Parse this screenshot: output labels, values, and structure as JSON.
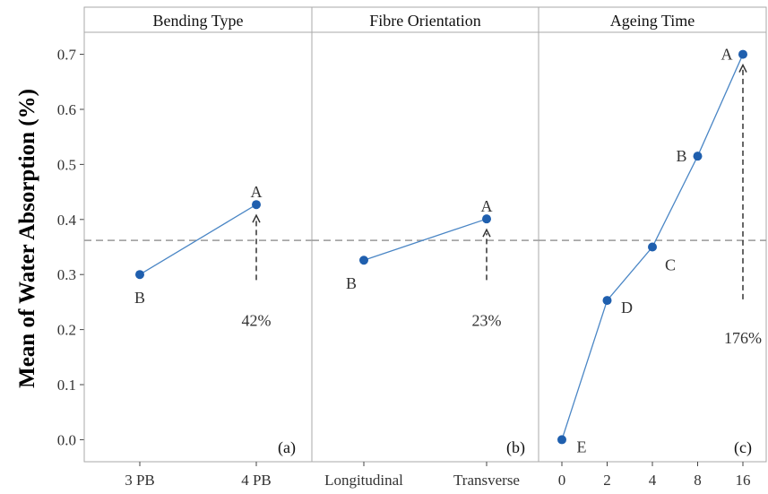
{
  "chart_data": {
    "type": "line",
    "ylabel": "Mean of Water Absorption (%)",
    "ylim": [
      -0.04,
      0.74
    ],
    "yticks": [
      0.0,
      0.1,
      0.2,
      0.3,
      0.4,
      0.5,
      0.6,
      0.7
    ],
    "ytick_labels": [
      "0.0",
      "0.1",
      "0.2",
      "0.3",
      "0.4",
      "0.5",
      "0.6",
      "0.7"
    ],
    "reference_line": 0.362,
    "grid": false,
    "colors": {
      "line": "#4a86c5",
      "marker": "#1f5fae",
      "reference": "#999999",
      "frame": "#aaaaaa",
      "arrow": "#333333"
    },
    "panels": [
      {
        "title": "Bending Type",
        "tag": "(a)",
        "categories": [
          "3 PB",
          "4 PB"
        ],
        "values": [
          0.3,
          0.427
        ],
        "groups": [
          "B",
          "A"
        ],
        "increase_label": "42%"
      },
      {
        "title": "Fibre Orientation",
        "tag": "(b)",
        "categories": [
          "Longitudinal",
          "Transverse"
        ],
        "values": [
          0.326,
          0.401
        ],
        "groups": [
          "B",
          "A"
        ],
        "increase_label": "23%"
      },
      {
        "title": "Ageing Time",
        "tag": "(c)",
        "categories": [
          "0",
          "2",
          "4",
          "8",
          "16"
        ],
        "values": [
          0.0,
          0.253,
          0.35,
          0.515,
          0.7
        ],
        "groups": [
          "E",
          "D",
          "C",
          "B",
          "A"
        ],
        "increase_label": "176%"
      }
    ]
  }
}
